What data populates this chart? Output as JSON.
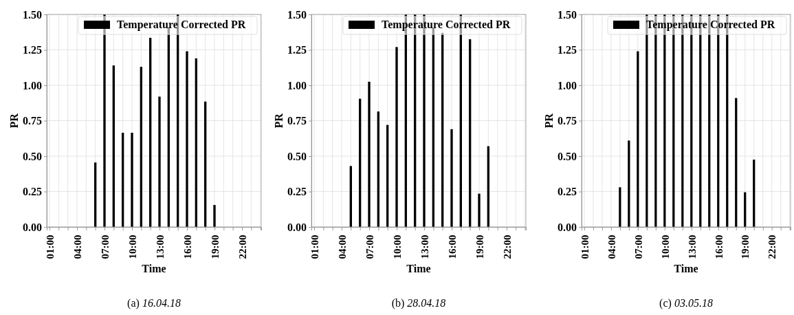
{
  "chart_data": [
    {
      "type": "bar",
      "xlabel": "Time",
      "ylabel": "PR",
      "annotations": [
        "(a) 16.04.18"
      ],
      "legend": "top right",
      "grid": true,
      "x": [
        6,
        7,
        8,
        9,
        10,
        11,
        12,
        13,
        14,
        15,
        16,
        17,
        18,
        19
      ],
      "series": [
        {
          "name": "Temperature Corrected PR",
          "color": "#000000",
          "values": [
            0.455,
            1.5,
            1.14,
            0.665,
            0.665,
            1.13,
            1.335,
            0.92,
            1.41,
            1.5,
            1.24,
            1.19,
            0.885,
            0.155
          ]
        }
      ],
      "xlim": [
        0.7,
        24.1
      ],
      "ylim": [
        0,
        1.5
      ],
      "yticks": [
        {
          "value": 0,
          "label": "0.00"
        },
        {
          "value": 0.25,
          "label": "0.25"
        },
        {
          "value": 0.5,
          "label": "0.50"
        },
        {
          "value": 0.75,
          "label": "0.75"
        },
        {
          "value": 1,
          "label": "1.00"
        },
        {
          "value": 1.25,
          "label": "1.25"
        },
        {
          "value": 1.5,
          "label": "1.50"
        }
      ],
      "xticks": [
        {
          "value": 1,
          "label": "01:00"
        },
        {
          "value": 2,
          "label": null
        },
        {
          "value": 3,
          "label": null
        },
        {
          "value": 4,
          "label": "04:00"
        },
        {
          "value": 5,
          "label": null
        },
        {
          "value": 6,
          "label": null
        },
        {
          "value": 7,
          "label": "07:00"
        },
        {
          "value": 8,
          "label": null
        },
        {
          "value": 9,
          "label": null
        },
        {
          "value": 10,
          "label": "10:00"
        },
        {
          "value": 11,
          "label": null
        },
        {
          "value": 12,
          "label": null
        },
        {
          "value": 13,
          "label": "13:00"
        },
        {
          "value": 14,
          "label": null
        },
        {
          "value": 15,
          "label": null
        },
        {
          "value": 16,
          "label": "16:00"
        },
        {
          "value": 17,
          "label": null
        },
        {
          "value": 18,
          "label": null
        },
        {
          "value": 19,
          "label": "19:00"
        },
        {
          "value": 20,
          "label": null
        },
        {
          "value": 21,
          "label": null
        },
        {
          "value": 22,
          "label": "22:00"
        },
        {
          "value": 23,
          "label": null
        },
        {
          "value": 24,
          "label": null
        }
      ]
    },
    {
      "type": "bar",
      "xlabel": "Time",
      "ylabel": "PR",
      "annotations": [
        "(b) 28.04.18"
      ],
      "legend": "top right",
      "grid": true,
      "x": [
        5,
        6,
        7,
        8,
        9,
        10,
        11,
        12,
        13,
        14,
        15,
        16,
        17,
        18,
        19,
        20
      ],
      "series": [
        {
          "name": "Temperature Corrected PR",
          "color": "#000000",
          "values": [
            0.43,
            0.905,
            1.025,
            0.815,
            0.72,
            1.27,
            1.5,
            1.5,
            1.5,
            1.405,
            1.37,
            0.69,
            1.5,
            1.325,
            0.235,
            0.57
          ]
        }
      ],
      "xlim": [
        0.7,
        24.1
      ],
      "ylim": [
        0,
        1.5
      ],
      "yticks": [
        {
          "value": 0,
          "label": "0.00"
        },
        {
          "value": 0.25,
          "label": "0.25"
        },
        {
          "value": 0.5,
          "label": "0.50"
        },
        {
          "value": 0.75,
          "label": "0.75"
        },
        {
          "value": 1,
          "label": "1.00"
        },
        {
          "value": 1.25,
          "label": "1.25"
        },
        {
          "value": 1.5,
          "label": "1.50"
        }
      ],
      "xticks": [
        {
          "value": 1,
          "label": "01:00"
        },
        {
          "value": 2,
          "label": null
        },
        {
          "value": 3,
          "label": null
        },
        {
          "value": 4,
          "label": "04:00"
        },
        {
          "value": 5,
          "label": null
        },
        {
          "value": 6,
          "label": null
        },
        {
          "value": 7,
          "label": "07:00"
        },
        {
          "value": 8,
          "label": null
        },
        {
          "value": 9,
          "label": null
        },
        {
          "value": 10,
          "label": "10:00"
        },
        {
          "value": 11,
          "label": null
        },
        {
          "value": 12,
          "label": null
        },
        {
          "value": 13,
          "label": "13:00"
        },
        {
          "value": 14,
          "label": null
        },
        {
          "value": 15,
          "label": null
        },
        {
          "value": 16,
          "label": "16:00"
        },
        {
          "value": 17,
          "label": null
        },
        {
          "value": 18,
          "label": null
        },
        {
          "value": 19,
          "label": "19:00"
        },
        {
          "value": 20,
          "label": null
        },
        {
          "value": 21,
          "label": null
        },
        {
          "value": 22,
          "label": "22:00"
        },
        {
          "value": 23,
          "label": null
        },
        {
          "value": 24,
          "label": null
        }
      ]
    },
    {
      "type": "bar",
      "xlabel": "Time",
      "ylabel": "PR",
      "annotations": [
        "(c) 03.05.18"
      ],
      "legend": "top right",
      "grid": true,
      "x": [
        5,
        6,
        7,
        8,
        9,
        10,
        11,
        12,
        13,
        14,
        15,
        16,
        17,
        18,
        19,
        20
      ],
      "series": [
        {
          "name": "Temperature Corrected PR",
          "color": "#000000",
          "values": [
            0.28,
            0.61,
            1.24,
            1.5,
            1.5,
            1.5,
            1.5,
            1.5,
            1.5,
            1.5,
            1.5,
            1.5,
            1.5,
            0.91,
            0.245,
            0.475
          ]
        }
      ],
      "xlim": [
        0.7,
        24.1
      ],
      "ylim": [
        0,
        1.5
      ],
      "yticks": [
        {
          "value": 0,
          "label": "0.00"
        },
        {
          "value": 0.25,
          "label": "0.25"
        },
        {
          "value": 0.5,
          "label": "0.50"
        },
        {
          "value": 0.75,
          "label": "0.75"
        },
        {
          "value": 1,
          "label": "1.00"
        },
        {
          "value": 1.25,
          "label": "1.25"
        },
        {
          "value": 1.5,
          "label": "1.50"
        }
      ],
      "xticks": [
        {
          "value": 1,
          "label": "01:00"
        },
        {
          "value": 2,
          "label": null
        },
        {
          "value": 3,
          "label": null
        },
        {
          "value": 4,
          "label": "04:00"
        },
        {
          "value": 5,
          "label": null
        },
        {
          "value": 6,
          "label": null
        },
        {
          "value": 7,
          "label": "07:00"
        },
        {
          "value": 8,
          "label": null
        },
        {
          "value": 9,
          "label": null
        },
        {
          "value": 10,
          "label": "10:00"
        },
        {
          "value": 11,
          "label": null
        },
        {
          "value": 12,
          "label": null
        },
        {
          "value": 13,
          "label": "13:00"
        },
        {
          "value": 14,
          "label": null
        },
        {
          "value": 15,
          "label": null
        },
        {
          "value": 16,
          "label": "16:00"
        },
        {
          "value": 17,
          "label": null
        },
        {
          "value": 18,
          "label": null
        },
        {
          "value": 19,
          "label": "19:00"
        },
        {
          "value": 20,
          "label": null
        },
        {
          "value": 21,
          "label": null
        },
        {
          "value": 22,
          "label": "22:00"
        },
        {
          "value": 23,
          "label": null
        },
        {
          "value": 24,
          "label": null
        }
      ]
    }
  ]
}
